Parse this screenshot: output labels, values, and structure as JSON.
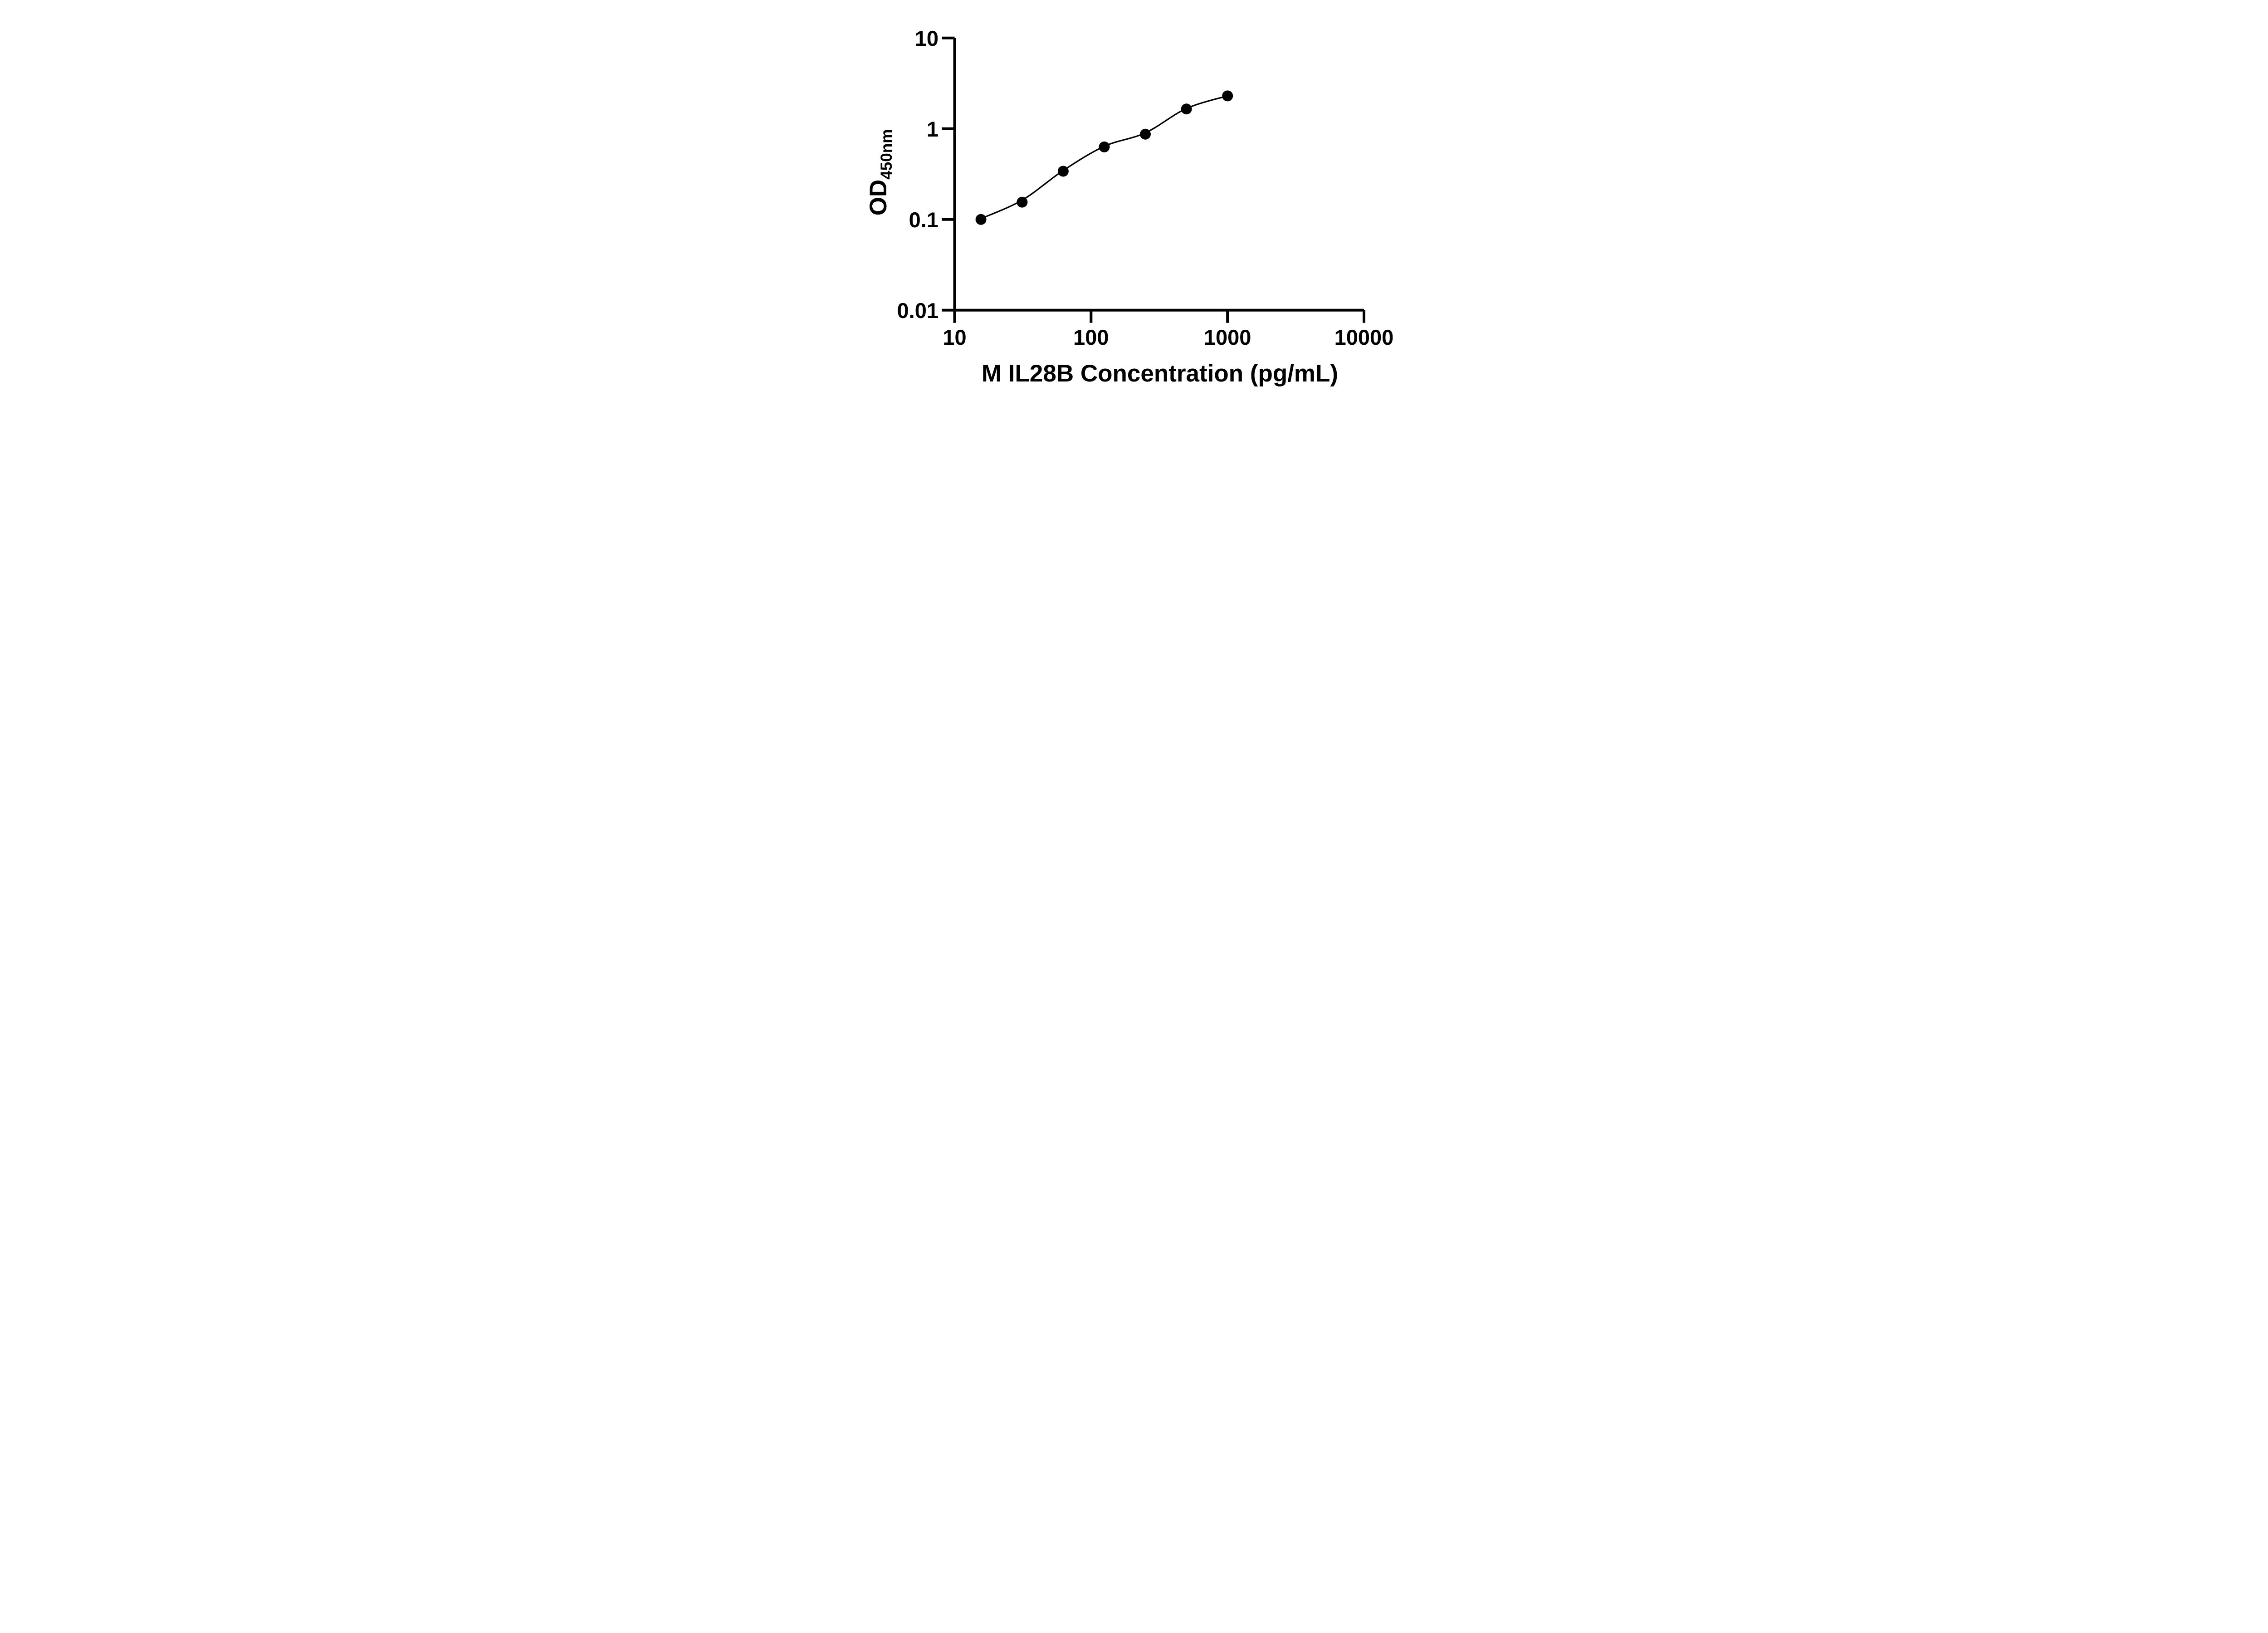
{
  "figure": {
    "background_color": "#ffffff",
    "foreground_color": "#000000",
    "x_axis": {
      "title": "M IL28B Concentration (pg/mL)",
      "scale": "log10",
      "tick_labels": [
        "10",
        "100",
        "1000",
        "10000"
      ]
    },
    "y_axis": {
      "title_main": "OD",
      "title_sub": "450nm",
      "scale": "log10",
      "tick_labels": [
        "10",
        "1",
        "0.1",
        "0.01"
      ]
    }
  },
  "chart_data": {
    "type": "scatter",
    "title": "",
    "xlabel": "M IL28B Concentration (pg/mL)",
    "ylabel": "OD450nm",
    "x_scale": "log",
    "y_scale": "log",
    "xlim": [
      10,
      10000
    ],
    "ylim": [
      0.01,
      10
    ],
    "x_ticks": [
      10,
      100,
      1000,
      10000
    ],
    "y_ticks": [
      10,
      1,
      0.1,
      0.01
    ],
    "grid": false,
    "legend": null,
    "marker_color": "#000000",
    "line_color": "#000000",
    "points": [
      {
        "x": 15.6,
        "y": 0.1
      },
      {
        "x": 31.25,
        "y": 0.155
      },
      {
        "x": 62.5,
        "y": 0.34
      },
      {
        "x": 125,
        "y": 0.63
      },
      {
        "x": 250,
        "y": 0.87
      },
      {
        "x": 500,
        "y": 1.65
      },
      {
        "x": 1000,
        "y": 2.3
      }
    ],
    "fit_curve": [
      {
        "x": 15.6,
        "y": 0.102
      },
      {
        "x": 31.25,
        "y": 0.163
      },
      {
        "x": 62.5,
        "y": 0.346
      },
      {
        "x": 125,
        "y": 0.64
      },
      {
        "x": 250,
        "y": 0.9
      },
      {
        "x": 500,
        "y": 1.67
      },
      {
        "x": 1000,
        "y": 2.3
      }
    ]
  }
}
